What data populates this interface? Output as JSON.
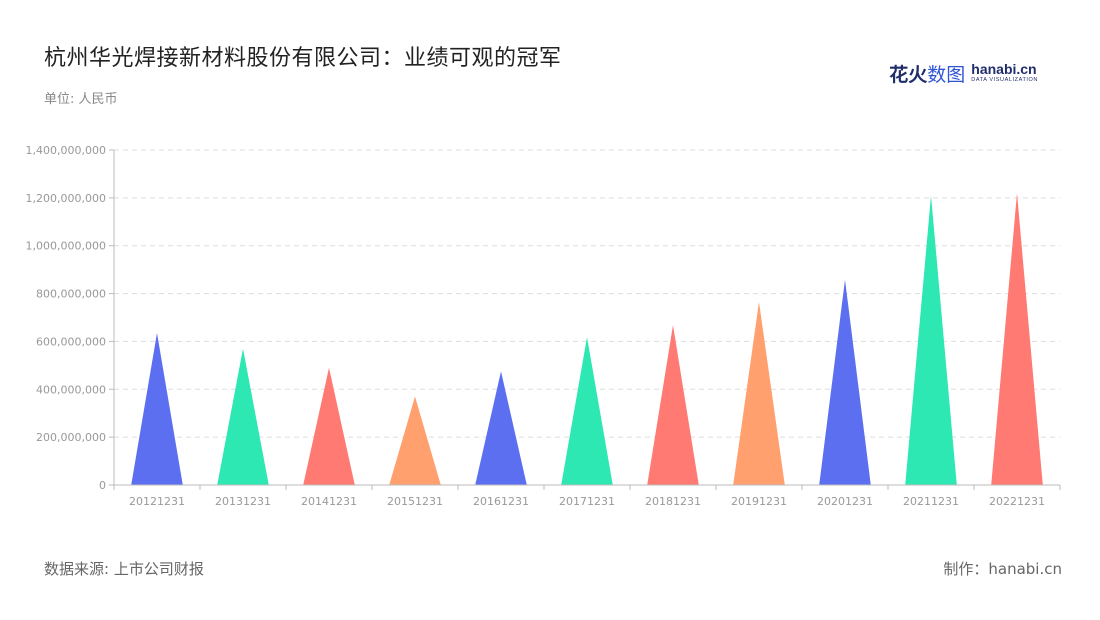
{
  "title": "杭州华光焊接新材料股份有限公司：业绩可观的冠军",
  "unit_label": "单位: 人民币",
  "logo": {
    "cn_bold": "花火",
    "cn_light": "数图",
    "en_main": "hanabi.cn",
    "en_sub": "DATA VISUALIZATION"
  },
  "footer": {
    "source": "数据来源: 上市公司财报",
    "maker": "制作：hanabi.cn"
  },
  "colors": {
    "palette": [
      "#5b6ff0",
      "#2ee8b4",
      "#ff7a73",
      "#ffa06e"
    ],
    "grid": "#dddddd",
    "axis": "#bbbbbb"
  },
  "chart_data": {
    "type": "bar",
    "bar_shape": "triangle",
    "categories": [
      "20121231",
      "20131231",
      "20141231",
      "20151231",
      "20161231",
      "20171231",
      "20181231",
      "20191231",
      "20201231",
      "20211231",
      "20221231"
    ],
    "values": [
      635000000,
      570000000,
      490000000,
      370000000,
      475000000,
      618000000,
      668000000,
      765000000,
      858000000,
      1210000000,
      1220000000
    ],
    "ylim": [
      0,
      1400000000
    ],
    "yticks": [
      0,
      200000000,
      400000000,
      600000000,
      800000000,
      1000000000,
      1200000000,
      1400000000
    ],
    "ytick_labels": [
      "0",
      "200,000,000",
      "400,000,000",
      "600,000,000",
      "800,000,000",
      "1,000,000,000",
      "1,200,000,000",
      "1,400,000,000"
    ],
    "grid": true,
    "xlabel": "",
    "ylabel": ""
  }
}
